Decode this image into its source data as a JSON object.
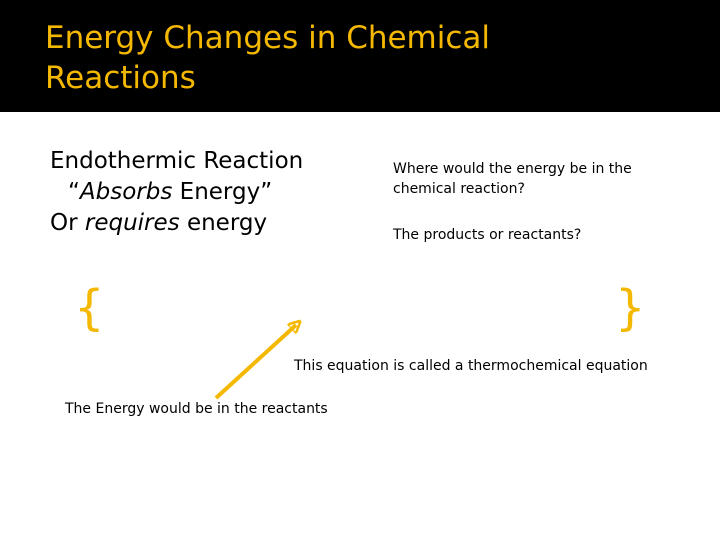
{
  "slide": {
    "title": "Energy Changes in Chemical Reactions",
    "left": {
      "line1": "Endothermic Reaction",
      "line2_quote_open": "“",
      "line2_italic": "Absorbs",
      "line2_rest": " Energy”",
      "line3_start": "Or ",
      "line3_italic": "requires",
      "line3_rest": " energy"
    },
    "right": {
      "question1": "Where would the energy be in the chemical reaction?",
      "question2": "The products or reactants?"
    },
    "equation_caption": "This equation is called a thermochemical equation",
    "energy_note": "The Energy would be in the reactants",
    "brace_left": "{",
    "brace_right": "}",
    "colors": {
      "accent": "#f5b800",
      "header": "#000000"
    }
  }
}
